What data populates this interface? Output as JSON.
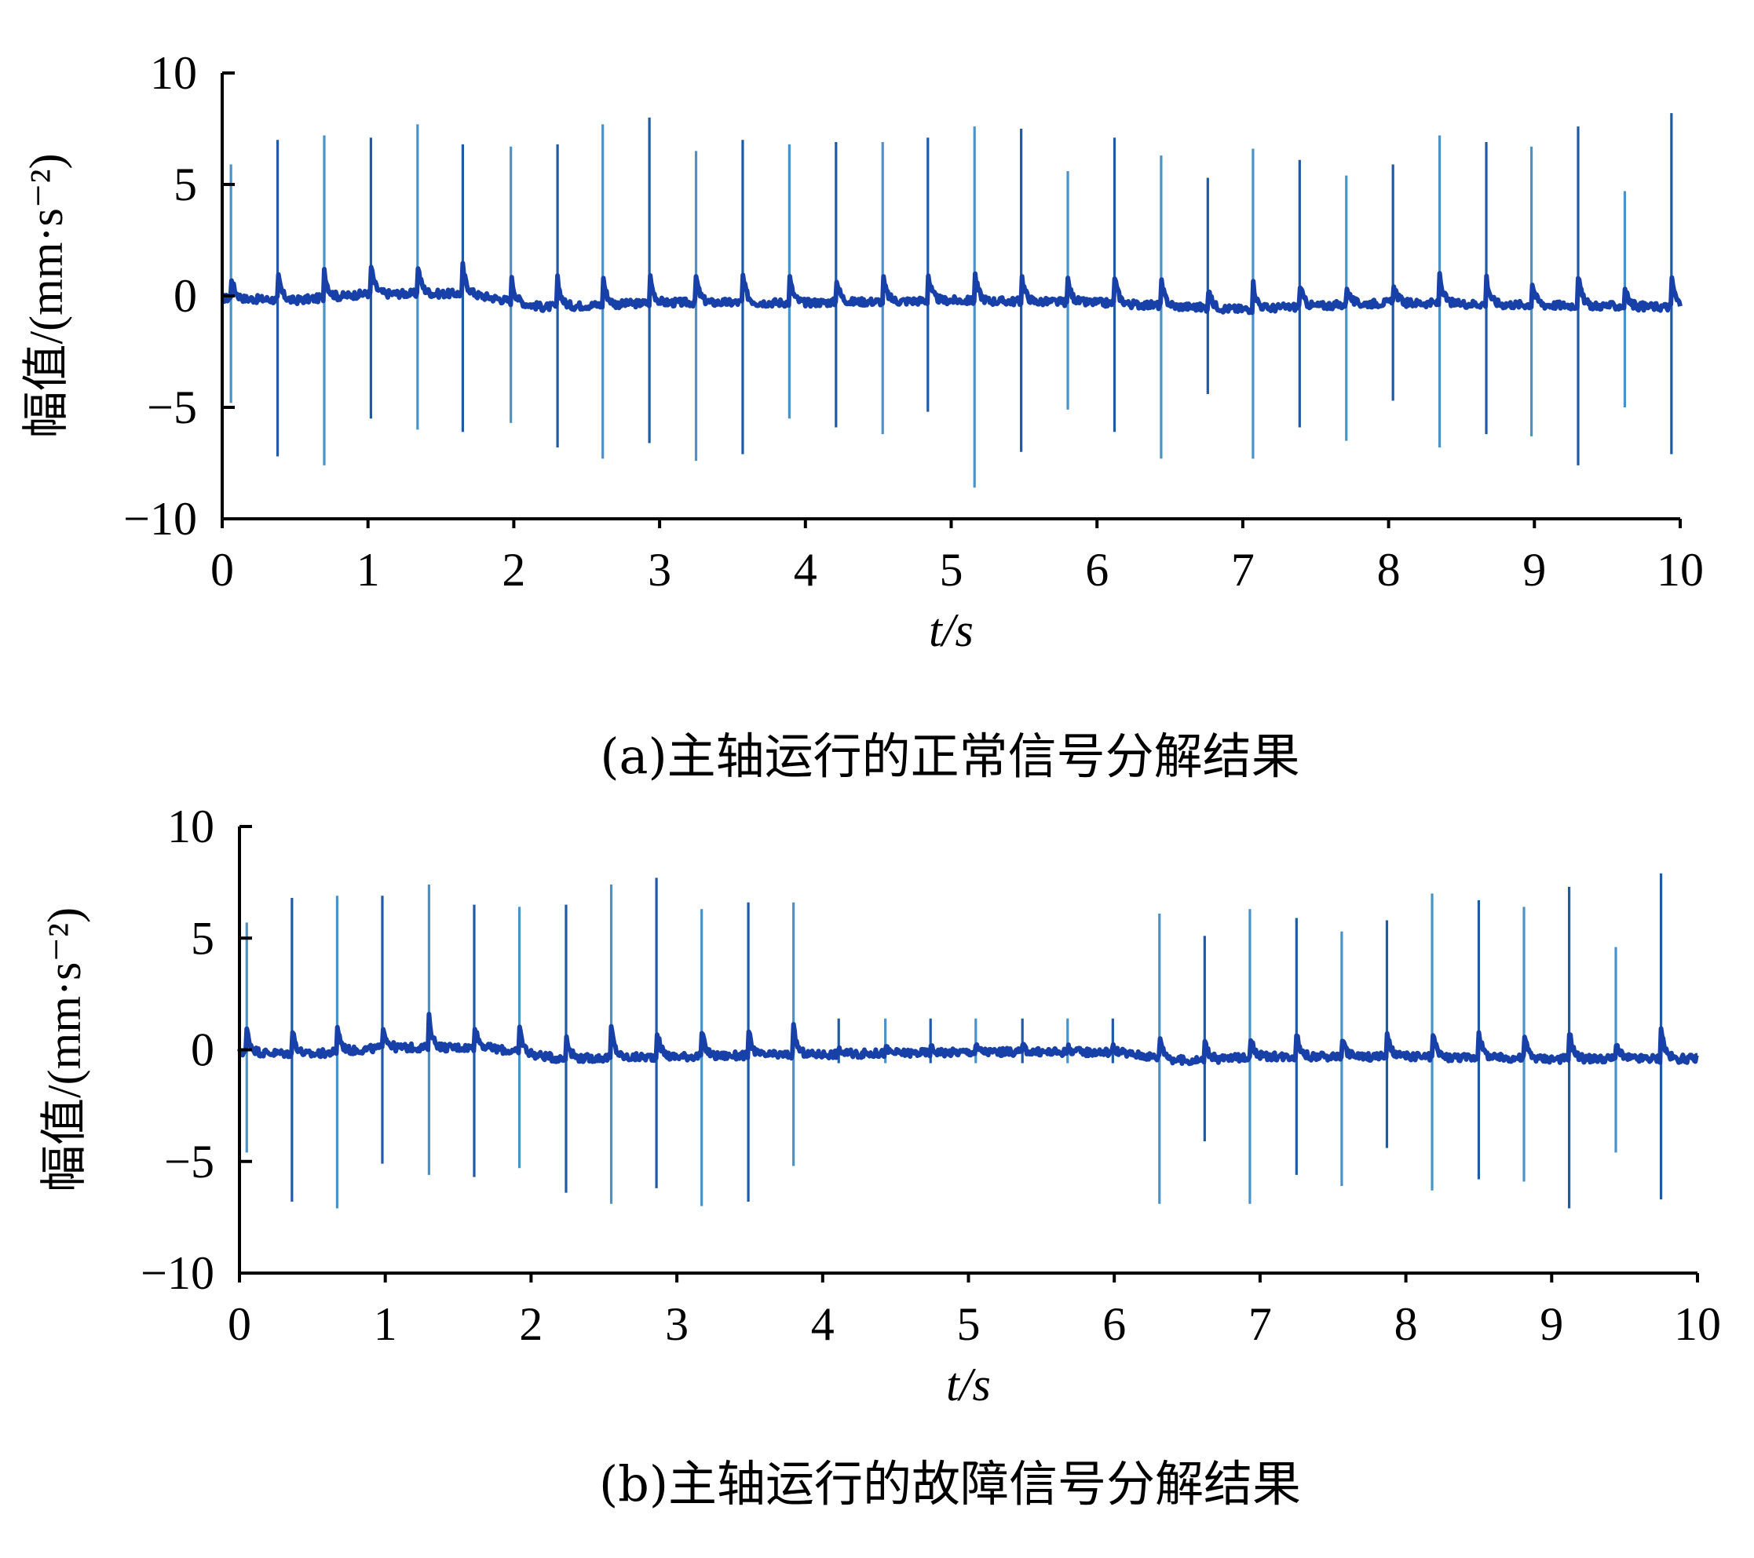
{
  "chart_data": [
    {
      "type": "line",
      "caption": "(a)主轴运行的正常信号分解结果",
      "xlabel": "t/s",
      "ylabel": "幅值/(mm·s⁻²)",
      "xlim": [
        0,
        10
      ],
      "ylim": [
        -10,
        10
      ],
      "x_ticks": [
        "0",
        "1",
        "2",
        "3",
        "4",
        "5",
        "6",
        "7",
        "8",
        "9",
        "10"
      ],
      "y_ticks": [
        "10",
        "5",
        "0",
        "−5",
        "−10"
      ],
      "baseline": [
        [
          0,
          -0.1
        ],
        [
          0.5,
          -0.2
        ],
        [
          1.0,
          0.1
        ],
        [
          1.7,
          0.1
        ],
        [
          2.2,
          -0.5
        ],
        [
          3.0,
          -0.3
        ],
        [
          4.0,
          -0.3
        ],
        [
          5.0,
          -0.2
        ],
        [
          6.0,
          -0.3
        ],
        [
          7.0,
          -0.6
        ],
        [
          8.0,
          -0.3
        ],
        [
          9.0,
          -0.4
        ],
        [
          10.0,
          -0.5
        ]
      ],
      "impulses": [
        {
          "t": 0.06,
          "max": 5.9,
          "min": -4.8
        },
        {
          "t": 0.38,
          "max": 7.0,
          "min": -7.2
        },
        {
          "t": 0.7,
          "max": 7.2,
          "min": -7.6
        },
        {
          "t": 1.02,
          "max": 7.1,
          "min": -5.5
        },
        {
          "t": 1.34,
          "max": 7.7,
          "min": -6.0
        },
        {
          "t": 1.65,
          "max": 6.8,
          "min": -6.1
        },
        {
          "t": 1.98,
          "max": 6.7,
          "min": -5.7
        },
        {
          "t": 2.3,
          "max": 6.8,
          "min": -6.8
        },
        {
          "t": 2.61,
          "max": 7.7,
          "min": -7.3
        },
        {
          "t": 2.93,
          "max": 8.0,
          "min": -6.6
        },
        {
          "t": 3.25,
          "max": 6.5,
          "min": -7.4
        },
        {
          "t": 3.57,
          "max": 7.0,
          "min": -7.1
        },
        {
          "t": 3.89,
          "max": 6.8,
          "min": -5.5
        },
        {
          "t": 4.21,
          "max": 6.9,
          "min": -5.9
        },
        {
          "t": 4.53,
          "max": 6.9,
          "min": -6.2
        },
        {
          "t": 4.84,
          "max": 7.1,
          "min": -5.2
        },
        {
          "t": 5.16,
          "max": 7.6,
          "min": -8.6
        },
        {
          "t": 5.48,
          "max": 7.5,
          "min": -7.0
        },
        {
          "t": 5.8,
          "max": 5.6,
          "min": -5.1
        },
        {
          "t": 6.12,
          "max": 7.1,
          "min": -6.1
        },
        {
          "t": 6.44,
          "max": 6.3,
          "min": -7.3
        },
        {
          "t": 6.76,
          "max": 5.3,
          "min": -4.4
        },
        {
          "t": 7.07,
          "max": 6.6,
          "min": -7.3
        },
        {
          "t": 7.39,
          "max": 6.1,
          "min": -5.9
        },
        {
          "t": 7.71,
          "max": 5.4,
          "min": -6.5
        },
        {
          "t": 8.03,
          "max": 5.9,
          "min": -4.7
        },
        {
          "t": 8.35,
          "max": 7.2,
          "min": -6.8
        },
        {
          "t": 8.67,
          "max": 6.9,
          "min": -6.2
        },
        {
          "t": 8.98,
          "max": 6.7,
          "min": -6.3
        },
        {
          "t": 9.3,
          "max": 7.6,
          "min": -7.6
        },
        {
          "t": 9.62,
          "max": 4.7,
          "min": -5.0
        },
        {
          "t": 9.94,
          "max": 8.2,
          "min": -7.1
        }
      ]
    },
    {
      "type": "line",
      "caption": "(b)主轴运行的故障信号分解结果",
      "xlabel": "t/s",
      "ylabel": "幅值/(mm·s⁻²)",
      "xlim": [
        0,
        10
      ],
      "ylim": [
        -10,
        10
      ],
      "x_ticks": [
        "0",
        "1",
        "2",
        "3",
        "4",
        "5",
        "6",
        "7",
        "8",
        "9",
        "10"
      ],
      "y_ticks": [
        "10",
        "5",
        "0",
        "−5",
        "−10"
      ],
      "baseline": [
        [
          0,
          -0.1
        ],
        [
          0.5,
          -0.2
        ],
        [
          1.0,
          0.1
        ],
        [
          1.7,
          0.1
        ],
        [
          2.2,
          -0.4
        ],
        [
          3.0,
          -0.3
        ],
        [
          4.0,
          -0.2
        ],
        [
          5.0,
          -0.1
        ],
        [
          6.0,
          -0.1
        ],
        [
          6.5,
          -0.5
        ],
        [
          7.0,
          -0.3
        ],
        [
          8.0,
          -0.3
        ],
        [
          9.0,
          -0.4
        ],
        [
          10.0,
          -0.4
        ]
      ],
      "impulses": [
        {
          "t": 0.05,
          "max": 5.7,
          "min": -4.6
        },
        {
          "t": 0.36,
          "max": 6.8,
          "min": -6.8
        },
        {
          "t": 0.67,
          "max": 6.9,
          "min": -7.1
        },
        {
          "t": 0.98,
          "max": 6.9,
          "min": -5.1
        },
        {
          "t": 1.3,
          "max": 7.4,
          "min": -5.6
        },
        {
          "t": 1.61,
          "max": 6.5,
          "min": -5.7
        },
        {
          "t": 1.92,
          "max": 6.4,
          "min": -5.3
        },
        {
          "t": 2.24,
          "max": 6.5,
          "min": -6.4
        },
        {
          "t": 2.55,
          "max": 7.4,
          "min": -6.9
        },
        {
          "t": 2.86,
          "max": 7.7,
          "min": -6.2
        },
        {
          "t": 3.17,
          "max": 6.3,
          "min": -7.0
        },
        {
          "t": 3.49,
          "max": 6.6,
          "min": -6.8
        },
        {
          "t": 3.8,
          "max": 6.6,
          "min": -5.2
        },
        {
          "t": 4.11,
          "max": 1.4,
          "min": -0.6
        },
        {
          "t": 4.43,
          "max": 1.4,
          "min": -0.6
        },
        {
          "t": 4.74,
          "max": 1.4,
          "min": -0.6
        },
        {
          "t": 5.05,
          "max": 1.4,
          "min": -0.6
        },
        {
          "t": 5.37,
          "max": 1.4,
          "min": -0.6
        },
        {
          "t": 5.68,
          "max": 1.4,
          "min": -0.6
        },
        {
          "t": 5.99,
          "max": 1.4,
          "min": -0.6
        },
        {
          "t": 6.31,
          "max": 6.1,
          "min": -6.9
        },
        {
          "t": 6.62,
          "max": 5.1,
          "min": -4.1
        },
        {
          "t": 6.93,
          "max": 6.3,
          "min": -6.9
        },
        {
          "t": 7.25,
          "max": 5.9,
          "min": -5.6
        },
        {
          "t": 7.56,
          "max": 5.3,
          "min": -6.1
        },
        {
          "t": 7.87,
          "max": 5.8,
          "min": -4.4
        },
        {
          "t": 8.18,
          "max": 7.0,
          "min": -6.3
        },
        {
          "t": 8.5,
          "max": 6.7,
          "min": -5.8
        },
        {
          "t": 8.81,
          "max": 6.4,
          "min": -5.9
        },
        {
          "t": 9.12,
          "max": 7.3,
          "min": -7.1
        },
        {
          "t": 9.44,
          "max": 4.6,
          "min": -4.6
        },
        {
          "t": 9.75,
          "max": 7.9,
          "min": -6.7
        }
      ]
    }
  ],
  "colors": {
    "spike_light": "#4a93c8",
    "spike_dark": "#1f5aa6",
    "baseline": "#1740a8",
    "axis": "#000000"
  }
}
